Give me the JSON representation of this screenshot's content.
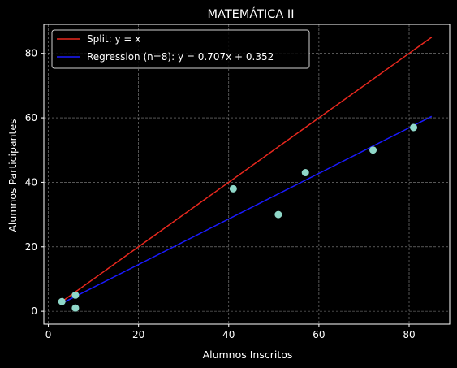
{
  "chart_data": {
    "type": "scatter",
    "title": "MATEMÁTICA II",
    "xlabel": "Alumnos Inscritos",
    "ylabel": "Alumnos Participantes",
    "xlim": [
      -1,
      89
    ],
    "ylim": [
      -4,
      89
    ],
    "x_ticks": [
      0,
      20,
      40,
      60,
      80
    ],
    "y_ticks": [
      0,
      20,
      40,
      60,
      80
    ],
    "grid": true,
    "legend_position": "upper-left",
    "points": {
      "x": [
        3,
        6,
        6,
        41,
        51,
        57,
        72,
        81
      ],
      "y": [
        3,
        5,
        1,
        38,
        30,
        43,
        50,
        57
      ],
      "color": "#8fd7c8"
    },
    "series": [
      {
        "name": "Split: y = x",
        "type": "line",
        "x": [
          3,
          85
        ],
        "y": [
          3,
          85
        ],
        "color": "#e8281e"
      },
      {
        "name": "Regression (n=8): y = 0.707x + 0.352",
        "type": "line",
        "x": [
          3,
          85
        ],
        "y": [
          2.47,
          60.45
        ],
        "color": "#1a1aff"
      }
    ],
    "colors": {
      "background": "#000000",
      "axis": "#ffffff",
      "grid": "#8a8a8a"
    }
  }
}
